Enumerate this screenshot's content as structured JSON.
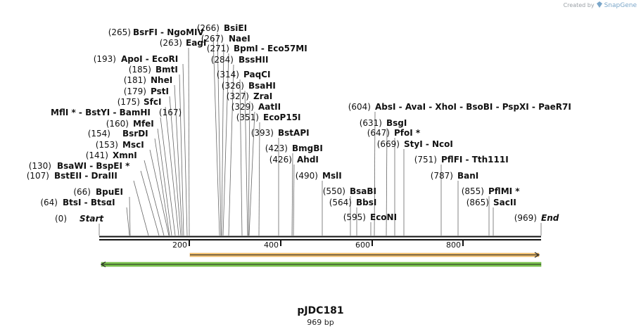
{
  "credit": {
    "prefix": "Created by",
    "brand": "SnapGene"
  },
  "plasmid": {
    "name": "pJDC181",
    "size_label": "969 bp"
  },
  "axis": {
    "ticks": [
      "200",
      "400",
      "600",
      "800"
    ]
  },
  "colors": {
    "forward_feature": "#f0c070",
    "reverse_feature": "#7ec850",
    "line": "#111111"
  },
  "sites": [
    {
      "pos": "(0)",
      "name": "Start"
    },
    {
      "pos": "(64)",
      "name": "BtsI - BtsαI"
    },
    {
      "pos": "(66)",
      "name": "BpuEI"
    },
    {
      "pos": "(107)",
      "name": "BstEII - DraIII"
    },
    {
      "pos": "(130)",
      "name": "BsaWI - BspEI *"
    },
    {
      "pos": "(141)",
      "name": "XmnI"
    },
    {
      "pos": "(153)",
      "name": "MscI"
    },
    {
      "pos": "(154)",
      "name": "BsrDI"
    },
    {
      "pos": "(160)",
      "name": "MfeI"
    },
    {
      "pos": "(167)",
      "name": "MflI * - BstYI - BamHI"
    },
    {
      "pos": "(175)",
      "name": "SfcI"
    },
    {
      "pos": "(179)",
      "name": "PstI"
    },
    {
      "pos": "(181)",
      "name": "NheI"
    },
    {
      "pos": "(185)",
      "name": "BmtI"
    },
    {
      "pos": "(193)",
      "name": "ApoI - EcoRI"
    },
    {
      "pos": "(263)",
      "name": "EagI"
    },
    {
      "pos": "(265)",
      "name": "BsrFI - NgoMIV"
    },
    {
      "pos": "(266)",
      "name": "BsiEI"
    },
    {
      "pos": "(267)",
      "name": "NaeI"
    },
    {
      "pos": "(271)",
      "name": "BpmI - Eco57MI"
    },
    {
      "pos": "(284)",
      "name": "BssHII"
    },
    {
      "pos": "(314)",
      "name": "PaqCI"
    },
    {
      "pos": "(326)",
      "name": "BsaHI"
    },
    {
      "pos": "(327)",
      "name": "ZraI"
    },
    {
      "pos": "(329)",
      "name": "AatII"
    },
    {
      "pos": "(351)",
      "name": "EcoP15I"
    },
    {
      "pos": "(393)",
      "name": "BstAPI"
    },
    {
      "pos": "(423)",
      "name": "BmgBI"
    },
    {
      "pos": "(426)",
      "name": "AhdI"
    },
    {
      "pos": "(490)",
      "name": "MslI"
    },
    {
      "pos": "(550)",
      "name": "BsaBI"
    },
    {
      "pos": "(564)",
      "name": "BbsI"
    },
    {
      "pos": "(595)",
      "name": "EcoNI"
    },
    {
      "pos": "(604)",
      "name": "AbsI - AvaI - XhoI - BsoBI - PspXI - PaeR7I"
    },
    {
      "pos": "(631)",
      "name": "BsgI"
    },
    {
      "pos": "(647)",
      "name": "PfoI *"
    },
    {
      "pos": "(669)",
      "name": "StyI - NcoI"
    },
    {
      "pos": "(751)",
      "name": "PflFI - Tth111I"
    },
    {
      "pos": "(787)",
      "name": "BanI"
    },
    {
      "pos": "(855)",
      "name": "PflMI *"
    },
    {
      "pos": "(865)",
      "name": "SacII"
    },
    {
      "pos": "(969)",
      "name": "End"
    }
  ]
}
